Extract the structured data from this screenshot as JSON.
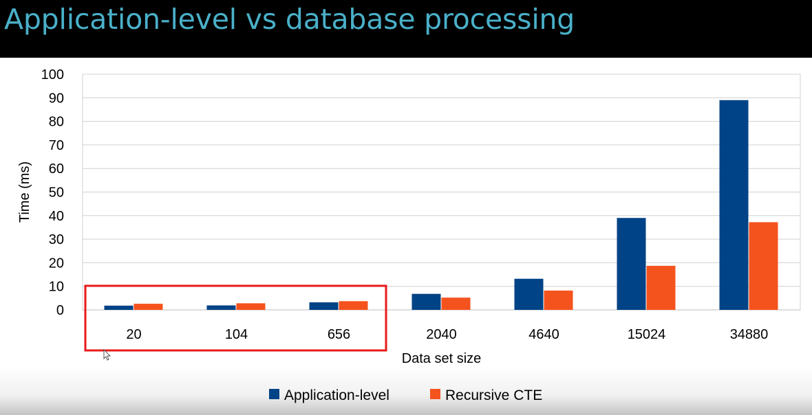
{
  "slide": {
    "title": "Application-level vs database processing"
  },
  "colors": {
    "title_bar": "#000000",
    "title_text": "#4ab0c9",
    "application_level": "#004386",
    "recursive_cte": "#f5531e",
    "highlight_box": "#e81a1a",
    "gridline": "#d0d0d0"
  },
  "chart_data": {
    "type": "bar",
    "categories": [
      "20",
      "104",
      "656",
      "2040",
      "4640",
      "15024",
      "34880"
    ],
    "series": [
      {
        "name": "Application-level",
        "values": [
          1.8,
          1.9,
          3.2,
          6.8,
          13.2,
          39,
          89
        ]
      },
      {
        "name": "Recursive CTE",
        "values": [
          2.6,
          2.8,
          3.7,
          5.2,
          8.2,
          18.7,
          37.2
        ]
      }
    ],
    "title": "",
    "xlabel": "Data set size",
    "ylabel": "Time (ms)",
    "ylim": [
      0,
      100
    ],
    "yticks": [
      0,
      10,
      20,
      30,
      40,
      50,
      60,
      70,
      80,
      90,
      100
    ],
    "grid": true,
    "legend_position": "bottom",
    "highlighted_categories": [
      "20",
      "104",
      "656"
    ]
  }
}
